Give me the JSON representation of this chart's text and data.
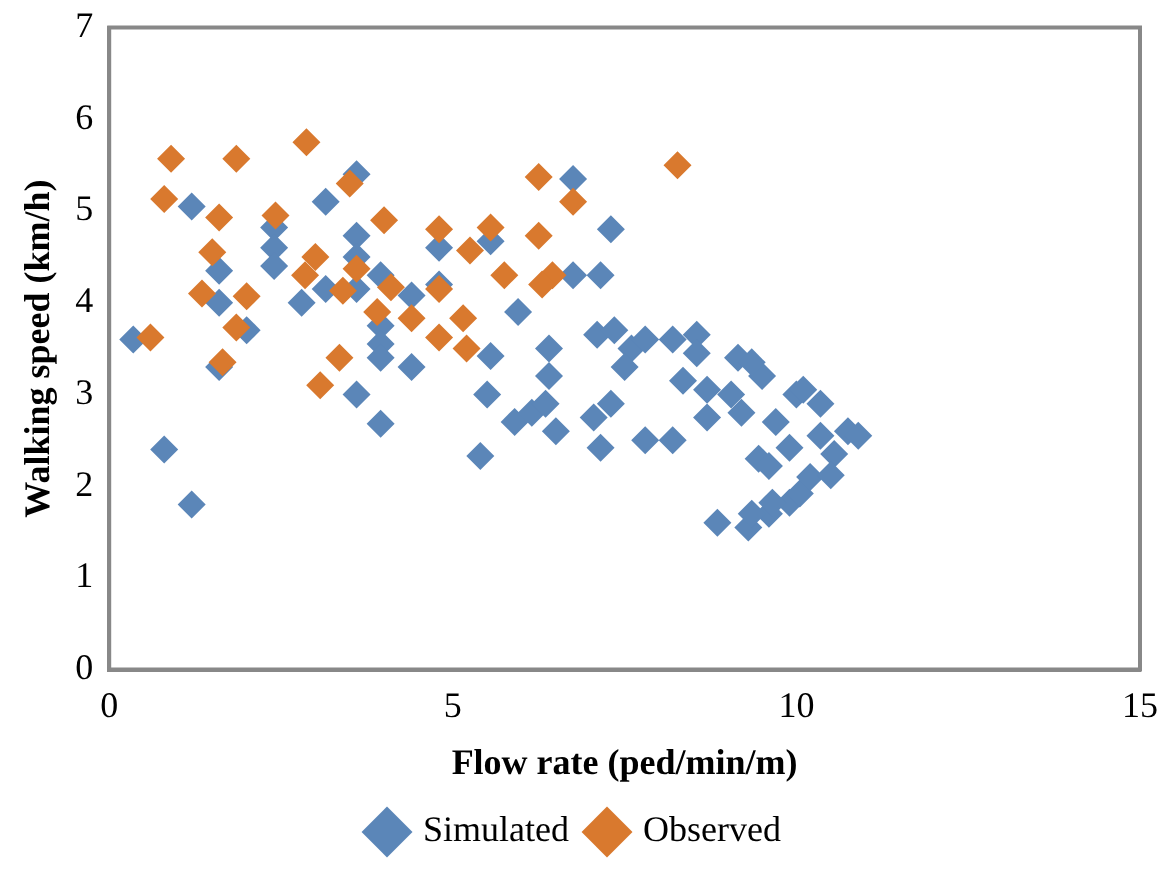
{
  "chart_data": {
    "type": "scatter",
    "xlabel": "Flow rate (ped/min/m)",
    "ylabel": "Walking speed (km/h)",
    "xlim": [
      0,
      15
    ],
    "xticks": [
      0,
      5,
      10,
      15
    ],
    "ylim": [
      0,
      7
    ],
    "yticks": [
      0,
      1,
      2,
      3,
      4,
      5,
      6,
      7
    ],
    "grid": false,
    "legend": "bottom",
    "marker": "diamond",
    "series": [
      {
        "name": "Simulated",
        "color": "#5b86b8",
        "x": [
          0.35,
          0.8,
          1.2,
          1.2,
          3.15,
          3.6,
          2.4,
          2.4,
          2.4,
          1.6,
          1.6,
          2.8,
          3.15,
          3.6,
          3.6,
          3.6,
          3.95,
          3.95,
          3.95,
          3.95,
          4.4,
          4.4,
          2.0,
          1.6,
          3.6,
          3.95,
          4.8,
          4.8,
          6.75,
          7.3,
          5.55,
          6.75,
          7.15,
          5.95,
          5.55,
          6.4,
          6.4,
          5.5,
          5.4,
          5.9,
          6.15,
          6.35,
          6.5,
          7.05,
          7.3,
          7.15,
          7.8,
          8.2,
          7.1,
          7.35,
          7.6,
          7.8,
          7.5,
          8.2,
          8.55,
          8.55,
          8.35,
          8.7,
          8.7,
          9.05,
          9.2,
          9.15,
          9.5,
          8.85,
          9.3,
          9.6,
          9.9,
          10.05,
          9.45,
          9.7,
          10.0,
          10.1,
          10.35,
          10.75,
          10.9,
          10.35,
          10.55,
          9.9,
          9.6,
          10.2,
          10.5,
          9.65,
          9.35,
          9.35
        ],
        "values": [
          3.6,
          2.4,
          1.8,
          5.05,
          5.1,
          5.4,
          4.82,
          4.6,
          4.4,
          4.35,
          4.0,
          4.0,
          4.15,
          4.73,
          4.5,
          4.15,
          4.3,
          3.75,
          3.55,
          3.4,
          4.08,
          3.3,
          3.7,
          3.3,
          3.0,
          2.68,
          4.6,
          4.2,
          5.35,
          4.8,
          4.67,
          4.3,
          4.3,
          3.9,
          3.42,
          3.5,
          3.2,
          3.0,
          2.33,
          2.7,
          2.8,
          2.9,
          2.6,
          2.75,
          2.9,
          2.42,
          2.5,
          2.5,
          3.65,
          3.7,
          3.5,
          3.6,
          3.3,
          3.6,
          3.65,
          3.45,
          3.15,
          3.05,
          2.75,
          3.0,
          2.8,
          3.4,
          3.2,
          1.6,
          1.55,
          1.7,
          1.82,
          1.92,
          2.3,
          2.7,
          3.0,
          3.05,
          2.9,
          2.6,
          2.55,
          2.55,
          2.35,
          2.42,
          2.22,
          2.1,
          2.12,
          1.82,
          1.7,
          3.35
        ]
      },
      {
        "name": "Observed",
        "color": "#d9792e",
        "x": [
          0.9,
          1.85,
          2.87,
          0.8,
          1.6,
          2.42,
          3.5,
          4.0,
          4.8,
          1.5,
          3.0,
          2.85,
          3.6,
          1.35,
          2.0,
          3.4,
          4.1,
          3.9,
          4.4,
          4.8,
          1.85,
          0.6,
          4.8,
          1.65,
          3.35,
          3.07,
          8.27,
          6.25,
          6.75,
          5.55,
          6.25,
          5.25,
          5.75,
          6.45,
          6.3,
          5.15,
          5.2
        ],
        "values": [
          5.57,
          5.57,
          5.75,
          5.13,
          4.93,
          4.95,
          5.3,
          4.9,
          4.8,
          4.55,
          4.5,
          4.3,
          4.37,
          4.1,
          4.07,
          4.13,
          4.17,
          3.9,
          3.83,
          4.15,
          3.73,
          3.62,
          3.62,
          3.35,
          3.4,
          3.1,
          5.5,
          5.37,
          5.1,
          4.82,
          4.73,
          4.57,
          4.3,
          4.3,
          4.2,
          3.83,
          3.5
        ]
      }
    ]
  }
}
